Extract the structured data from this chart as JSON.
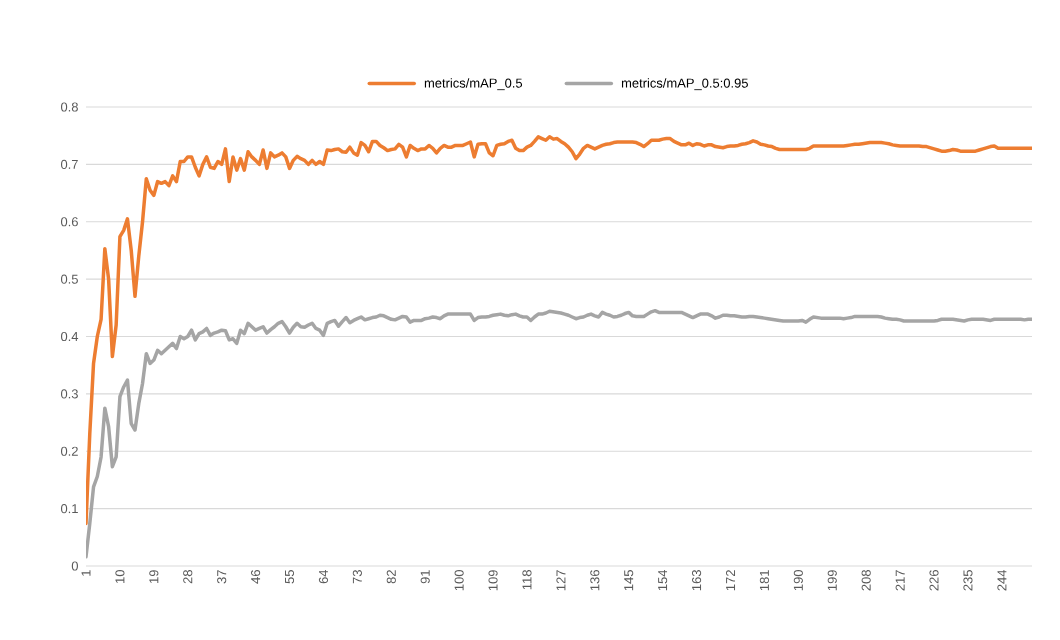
{
  "chart_data": {
    "type": "line",
    "categories": [
      "1",
      null,
      null,
      null,
      null,
      null,
      null,
      null,
      null,
      "10",
      null,
      null,
      null,
      null,
      null,
      null,
      null,
      null,
      "19",
      null,
      null,
      null,
      null,
      null,
      null,
      null,
      null,
      "28",
      null,
      null,
      null,
      null,
      null,
      null,
      null,
      null,
      "37",
      null,
      null,
      null,
      null,
      null,
      null,
      null,
      null,
      "46",
      null,
      null,
      null,
      null,
      null,
      null,
      null,
      null,
      "55",
      null,
      null,
      null,
      null,
      null,
      null,
      null,
      null,
      "64",
      null,
      null,
      null,
      null,
      null,
      null,
      null,
      null,
      "73",
      null,
      null,
      null,
      null,
      null,
      null,
      null,
      null,
      "82",
      null,
      null,
      null,
      null,
      null,
      null,
      null,
      null,
      "91",
      null,
      null,
      null,
      null,
      null,
      null,
      null,
      null,
      "100",
      null,
      null,
      null,
      null,
      null,
      null,
      null,
      null,
      "109",
      null,
      null,
      null,
      null,
      null,
      null,
      null,
      null,
      "118",
      null,
      null,
      null,
      null,
      null,
      null,
      null,
      null,
      "127",
      null,
      null,
      null,
      null,
      null,
      null,
      null,
      null,
      "136",
      null,
      null,
      null,
      null,
      null,
      null,
      null,
      null,
      "145",
      null,
      null,
      null,
      null,
      null,
      null,
      null,
      null,
      "154",
      null,
      null,
      null,
      null,
      null,
      null,
      null,
      null,
      "163",
      null,
      null,
      null,
      null,
      null,
      null,
      null,
      null,
      "172",
      null,
      null,
      null,
      null,
      null,
      null,
      null,
      null,
      "181",
      null,
      null,
      null,
      null,
      null,
      null,
      null,
      null,
      "190",
      null,
      null,
      null,
      null,
      null,
      null,
      null,
      null,
      "199",
      null,
      null,
      null,
      null,
      null,
      null,
      null,
      null,
      "208",
      null,
      null,
      null,
      null,
      null,
      null,
      null,
      null,
      "217",
      null,
      null,
      null,
      null,
      null,
      null,
      null,
      null,
      "226",
      null,
      null,
      null,
      null,
      null,
      null,
      null,
      null,
      "235",
      null,
      null,
      null,
      null,
      null,
      null,
      null,
      null,
      "244",
      null,
      null,
      null,
      null,
      null,
      null,
      null,
      null
    ],
    "series": [
      {
        "name": "metrics/mAP_0.5",
        "color": "#ed7d31",
        "values": [
          0.074,
          0.23,
          0.353,
          0.4,
          0.43,
          0.553,
          0.5,
          0.365,
          0.42,
          0.574,
          0.585,
          0.605,
          0.55,
          0.47,
          0.54,
          0.6,
          0.675,
          0.655,
          0.646,
          0.67,
          0.667,
          0.67,
          0.663,
          0.68,
          0.67,
          0.705,
          0.705,
          0.713,
          0.713,
          0.695,
          0.68,
          0.7,
          0.713,
          0.695,
          0.693,
          0.705,
          0.7,
          0.727,
          0.67,
          0.713,
          0.69,
          0.71,
          0.69,
          0.722,
          0.713,
          0.707,
          0.7,
          0.725,
          0.693,
          0.72,
          0.713,
          0.716,
          0.72,
          0.713,
          0.693,
          0.707,
          0.714,
          0.71,
          0.707,
          0.7,
          0.707,
          0.7,
          0.705,
          0.7,
          0.725,
          0.724,
          0.726,
          0.727,
          0.722,
          0.721,
          0.73,
          0.72,
          0.716,
          0.738,
          0.733,
          0.722,
          0.74,
          0.74,
          0.733,
          0.729,
          0.724,
          0.726,
          0.727,
          0.735,
          0.73,
          0.713,
          0.733,
          0.728,
          0.724,
          0.727,
          0.727,
          0.733,
          0.728,
          0.72,
          0.728,
          0.733,
          0.73,
          0.73,
          0.733,
          0.733,
          0.733,
          0.736,
          0.739,
          0.713,
          0.735,
          0.736,
          0.736,
          0.72,
          0.715,
          0.733,
          0.735,
          0.736,
          0.74,
          0.742,
          0.728,
          0.724,
          0.724,
          0.73,
          0.733,
          0.74,
          0.748,
          0.745,
          0.742,
          0.748,
          0.744,
          0.745,
          0.74,
          0.736,
          0.73,
          0.722,
          0.71,
          0.718,
          0.728,
          0.733,
          0.73,
          0.727,
          0.73,
          0.733,
          0.735,
          0.736,
          0.738,
          0.739,
          0.739,
          0.739,
          0.739,
          0.739,
          0.738,
          0.735,
          0.731,
          0.736,
          0.742,
          0.742,
          0.742,
          0.744,
          0.745,
          0.745,
          0.74,
          0.737,
          0.734,
          0.734,
          0.737,
          0.733,
          0.736,
          0.735,
          0.732,
          0.734,
          0.734,
          0.731,
          0.73,
          0.729,
          0.731,
          0.732,
          0.732,
          0.733,
          0.735,
          0.736,
          0.738,
          0.741,
          0.739,
          0.735,
          0.734,
          0.732,
          0.731,
          0.728,
          0.726,
          0.726,
          0.726,
          0.726,
          0.726,
          0.726,
          0.726,
          0.726,
          0.728,
          0.732,
          0.732,
          0.732,
          0.732,
          0.732,
          0.732,
          0.732,
          0.732,
          0.732,
          0.733,
          0.734,
          0.735,
          0.735,
          0.736,
          0.737,
          0.738,
          0.738,
          0.738,
          0.738,
          0.737,
          0.736,
          0.734,
          0.733,
          0.732,
          0.732,
          0.732,
          0.732,
          0.732,
          0.732,
          0.731,
          0.731,
          0.729,
          0.727,
          0.725,
          0.723,
          0.723,
          0.724,
          0.726,
          0.725,
          0.723,
          0.723,
          0.723,
          0.723,
          0.723,
          0.725,
          0.727,
          0.729,
          0.731,
          0.732,
          0.728,
          0.728,
          0.728,
          0.728,
          0.728,
          0.728,
          0.728,
          0.728,
          0.728,
          0.728
        ]
      },
      {
        "name": "metrics/mAP_0.5:0.95",
        "color": "#a5a5a5",
        "values": [
          0.016,
          0.074,
          0.138,
          0.156,
          0.19,
          0.275,
          0.243,
          0.173,
          0.19,
          0.295,
          0.312,
          0.324,
          0.248,
          0.237,
          0.283,
          0.318,
          0.37,
          0.353,
          0.359,
          0.376,
          0.37,
          0.376,
          0.382,
          0.388,
          0.379,
          0.4,
          0.396,
          0.4,
          0.411,
          0.394,
          0.405,
          0.408,
          0.414,
          0.402,
          0.406,
          0.408,
          0.411,
          0.41,
          0.394,
          0.396,
          0.388,
          0.411,
          0.405,
          0.423,
          0.417,
          0.411,
          0.414,
          0.417,
          0.406,
          0.412,
          0.417,
          0.423,
          0.426,
          0.417,
          0.406,
          0.416,
          0.423,
          0.417,
          0.416,
          0.42,
          0.423,
          0.414,
          0.411,
          0.402,
          0.423,
          0.426,
          0.428,
          0.418,
          0.426,
          0.433,
          0.424,
          0.428,
          0.431,
          0.434,
          0.429,
          0.431,
          0.433,
          0.434,
          0.437,
          0.436,
          0.433,
          0.43,
          0.429,
          0.432,
          0.435,
          0.434,
          0.425,
          0.428,
          0.428,
          0.428,
          0.431,
          0.432,
          0.434,
          0.433,
          0.431,
          0.436,
          0.439,
          0.439,
          0.439,
          0.439,
          0.439,
          0.439,
          0.439,
          0.428,
          0.433,
          0.434,
          0.434,
          0.435,
          0.437,
          0.438,
          0.439,
          0.437,
          0.436,
          0.438,
          0.439,
          0.436,
          0.434,
          0.434,
          0.428,
          0.434,
          0.439,
          0.439,
          0.441,
          0.444,
          0.443,
          0.442,
          0.441,
          0.439,
          0.437,
          0.434,
          0.431,
          0.433,
          0.434,
          0.437,
          0.439,
          0.436,
          0.434,
          0.442,
          0.439,
          0.437,
          0.434,
          0.435,
          0.437,
          0.44,
          0.442,
          0.436,
          0.435,
          0.435,
          0.435,
          0.439,
          0.443,
          0.445,
          0.442,
          0.442,
          0.442,
          0.442,
          0.442,
          0.442,
          0.442,
          0.439,
          0.436,
          0.433,
          0.436,
          0.439,
          0.439,
          0.439,
          0.436,
          0.432,
          0.434,
          0.437,
          0.437,
          0.436,
          0.436,
          0.435,
          0.434,
          0.434,
          0.435,
          0.435,
          0.434,
          0.433,
          0.432,
          0.431,
          0.43,
          0.429,
          0.428,
          0.427,
          0.427,
          0.427,
          0.427,
          0.427,
          0.428,
          0.425,
          0.43,
          0.434,
          0.433,
          0.432,
          0.432,
          0.432,
          0.432,
          0.432,
          0.432,
          0.431,
          0.432,
          0.433,
          0.435,
          0.435,
          0.435,
          0.435,
          0.435,
          0.435,
          0.435,
          0.434,
          0.432,
          0.431,
          0.43,
          0.43,
          0.429,
          0.427,
          0.427,
          0.427,
          0.427,
          0.427,
          0.427,
          0.427,
          0.427,
          0.427,
          0.428,
          0.43,
          0.43,
          0.43,
          0.43,
          0.429,
          0.428,
          0.427,
          0.429,
          0.43,
          0.43,
          0.43,
          0.43,
          0.429,
          0.428,
          0.43,
          0.43,
          0.43,
          0.43,
          0.43,
          0.43,
          0.43,
          0.43,
          0.429,
          0.43,
          0.43
        ]
      }
    ],
    "ylim": [
      0,
      0.8
    ],
    "yticks": [
      0,
      0.1,
      0.2,
      0.3,
      0.4,
      0.5,
      0.6,
      0.7,
      0.8
    ],
    "grid": "y",
    "legend": "top",
    "marker": "none",
    "line_style": "solid"
  }
}
